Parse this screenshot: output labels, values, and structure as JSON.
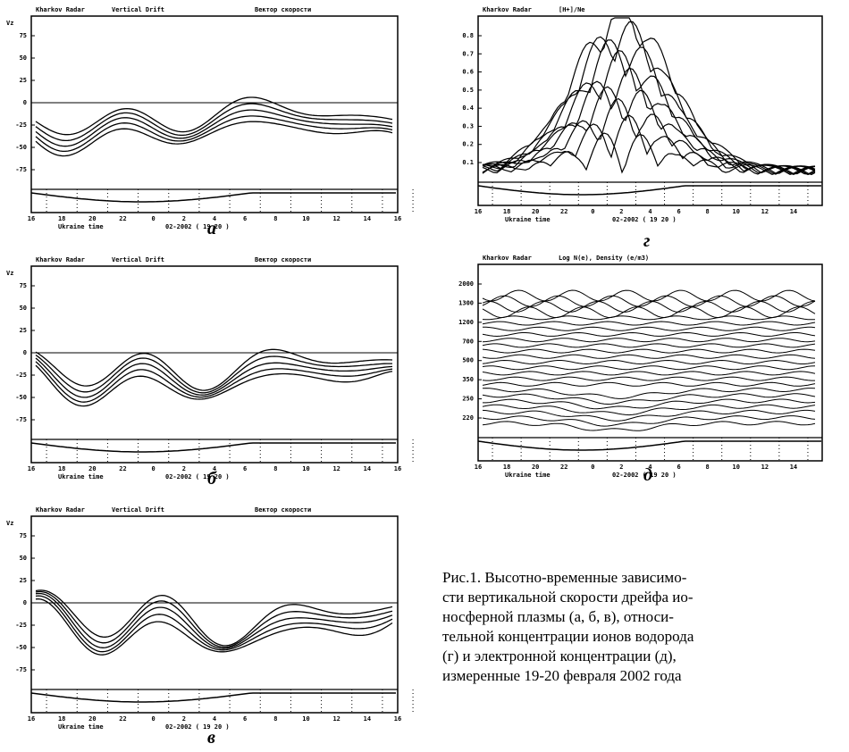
{
  "panels": [
    {
      "letter": "а",
      "header": [
        "Kharkov Radar",
        "Vertical Drift",
        "Вектор скорости"
      ],
      "y_axis_label": "Vz",
      "yticks": [
        "75",
        "50",
        "25",
        "0",
        "-25",
        "-50",
        "-75"
      ],
      "xticks": [
        "16",
        "18",
        "20",
        "22",
        "0",
        "2",
        "4",
        "6",
        "8",
        "10",
        "12",
        "14",
        "16"
      ],
      "x_label": "Ukraine time",
      "date": "02-2002 ( 19 20 )"
    },
    {
      "letter": "б",
      "header": [
        "Kharkov Radar",
        "Vertical Drift",
        "Вектор скорости"
      ],
      "y_axis_label": "Vz",
      "yticks": [
        "75",
        "50",
        "25",
        "0",
        "-25",
        "-50",
        "-75"
      ],
      "xticks": [
        "16",
        "18",
        "20",
        "22",
        "0",
        "2",
        "4",
        "6",
        "8",
        "10",
        "12",
        "14",
        "16"
      ],
      "x_label": "Ukraine time",
      "date": "02-2002 ( 19 20 )"
    },
    {
      "letter": "в",
      "header": [
        "Kharkov Radar",
        "Vertical Drift",
        "Вектор скорости"
      ],
      "y_axis_label": "Vz",
      "yticks": [
        "75",
        "50",
        "25",
        "0",
        "-25",
        "-50",
        "-75"
      ],
      "xticks": [
        "16",
        "18",
        "20",
        "22",
        "0",
        "2",
        "4",
        "6",
        "8",
        "10",
        "12",
        "14",
        "16"
      ],
      "x_label": "Ukraine time",
      "date": "02-2002 ( 19 20 )"
    },
    {
      "letter": "г",
      "header": [
        "Kharkov Radar",
        "[H+]/Ne"
      ],
      "yticks": [
        "0.8",
        "0.7",
        "0.6",
        "0.5",
        "0.4",
        "0.3",
        "0.2",
        "0.1"
      ],
      "xticks": [
        "16",
        "18",
        "20",
        "22",
        "0",
        "2",
        "4",
        "6",
        "8",
        "10",
        "12",
        "14"
      ],
      "x_label": "Ukraine time",
      "date": "02-2002 ( 19 20 )"
    },
    {
      "letter": "д",
      "header": [
        "Kharkov Radar",
        "Log N(e), Density (e/m3)"
      ],
      "yticks": [
        "2000",
        "1300",
        "1200",
        "700",
        "500",
        "350",
        "250",
        "220"
      ],
      "xticks": [
        "16",
        "18",
        "20",
        "22",
        "0",
        "2",
        "4",
        "6",
        "8",
        "10",
        "12",
        "14"
      ],
      "x_label": "Ukraine time",
      "date": "02-2002 ( 19 20 )"
    }
  ],
  "caption": [
    "Рис.1. Высотно-временные зависимо-",
    "сти вертикальной скорости дрейфа ио-",
    "носферной плазмы (а, б, в), относи-",
    "тельной концентрации ионов водорода",
    "(г) и электронной концентрации (д),",
    "измеренные 19-20 февраля 2002 года"
  ]
}
